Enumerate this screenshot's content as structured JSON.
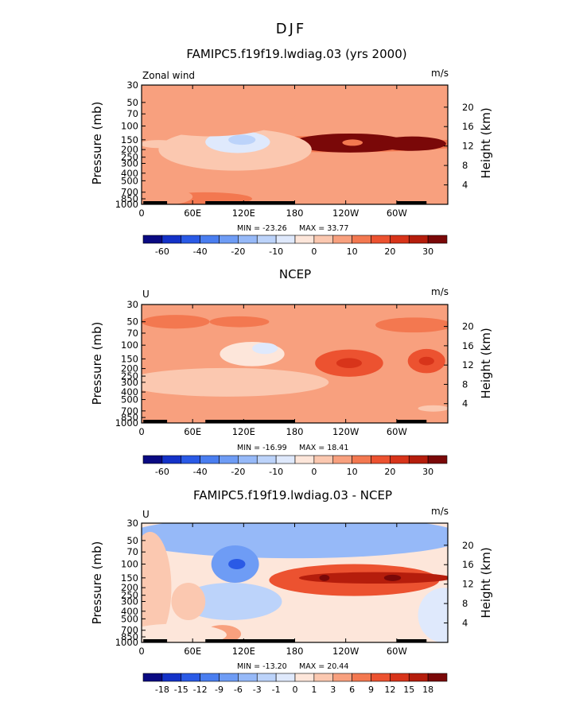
{
  "figure_title": "DJF",
  "chart_data": [
    {
      "type": "heatmap",
      "title": "FAMIPC5.f19f19.lwdiag.03 (yrs 2000)",
      "left_label": "Zonal wind",
      "units": "m/s",
      "xlabel": "",
      "ylabel": "Pressure (mb)",
      "ylabel_right": "Height (km)",
      "x_ticks": [
        "0",
        "60E",
        "120E",
        "180",
        "120W",
        "60W"
      ],
      "x_range": [
        0,
        360
      ],
      "y_ticks": [
        "30",
        "50",
        "70",
        "100",
        "150",
        "200",
        "250",
        "300",
        "400",
        "500",
        "700",
        "850",
        "1000"
      ],
      "y_ticks_right": [
        "20",
        "16",
        "12",
        "8",
        "4"
      ],
      "y_range": [
        30,
        1000
      ],
      "min_label": "MIN = -23.26",
      "max_label": "MAX = 33.77",
      "colorbar_labels": [
        "-60",
        "-40",
        "-20",
        "-10",
        "0",
        "10",
        "20",
        "30"
      ],
      "colorbar_colors": [
        "#0a0a82",
        "#1432c8",
        "#2a5ae6",
        "#4a7ef0",
        "#6e9cf5",
        "#96b9f8",
        "#bcd3fa",
        "#dfe9fc",
        "#fde6da",
        "#fbc8b0",
        "#f8a07e",
        "#f37850",
        "#ec5230",
        "#d8341a",
        "#b51d0c",
        "#7a0808"
      ],
      "features": [
        {
          "x": 200,
          "y": 230,
          "value": 2,
          "rx": 190,
          "ry": 60
        },
        {
          "x": 230,
          "y": 170,
          "value": 7,
          "rx": 150,
          "ry": 40
        },
        {
          "x": 320,
          "y": 130,
          "value": 1,
          "rx": 100,
          "ry": 20
        },
        {
          "x": 245,
          "y": 165,
          "value": 31,
          "rx": 68,
          "ry": 45
        },
        {
          "x": 318,
          "y": 168,
          "value": 28,
          "rx": 40,
          "ry": 35
        },
        {
          "x": 248,
          "y": 163,
          "value": 8,
          "rx": 12,
          "ry": 10
        },
        {
          "x": 110,
          "y": 200,
          "value": -6,
          "rx": 90,
          "ry": 110
        },
        {
          "x": 113,
          "y": 160,
          "value": -18,
          "rx": 38,
          "ry": 50
        },
        {
          "x": 118,
          "y": 150,
          "value": -23,
          "rx": 16,
          "ry": 22
        },
        {
          "x": 20,
          "y": 170,
          "value": -8,
          "rx": 22,
          "ry": 20
        },
        {
          "x": 80,
          "y": 50,
          "value": 1,
          "rx": 110,
          "ry": 60
        },
        {
          "x": 75,
          "y": 850,
          "value": 6,
          "rx": 55,
          "ry": 160
        },
        {
          "x": 20,
          "y": 800,
          "value": 2,
          "rx": 40,
          "ry": 200
        }
      ]
    },
    {
      "type": "heatmap",
      "title": "NCEP",
      "left_label": "U",
      "units": "m/s",
      "xlabel": "",
      "ylabel": "Pressure (mb)",
      "ylabel_right": "Height (km)",
      "x_ticks": [
        "0",
        "60E",
        "120E",
        "180",
        "120W",
        "60W"
      ],
      "x_range": [
        0,
        360
      ],
      "y_ticks": [
        "30",
        "50",
        "70",
        "100",
        "150",
        "200",
        "250",
        "300",
        "400",
        "500",
        "700",
        "850",
        "1000"
      ],
      "y_ticks_right": [
        "20",
        "16",
        "12",
        "8",
        "4"
      ],
      "y_range": [
        30,
        1000
      ],
      "min_label": "MIN = -16.99",
      "max_label": "MAX = 18.41",
      "colorbar_labels": [
        "-60",
        "-40",
        "-20",
        "-10",
        "0",
        "10",
        "20",
        "30"
      ],
      "colorbar_colors": [
        "#0a0a82",
        "#1432c8",
        "#2a5ae6",
        "#4a7ef0",
        "#6e9cf5",
        "#96b9f8",
        "#bcd3fa",
        "#dfe9fc",
        "#fde6da",
        "#fbc8b0",
        "#f8a07e",
        "#f37850",
        "#ec5230",
        "#d8341a",
        "#b51d0c",
        "#7a0808"
      ],
      "features": [
        {
          "x": 200,
          "y": 230,
          "value": 2,
          "rx": 200,
          "ry": 80
        },
        {
          "x": 100,
          "y": 300,
          "value": -4,
          "rx": 120,
          "ry": 120
        },
        {
          "x": 130,
          "y": 130,
          "value": -14,
          "rx": 38,
          "ry": 45
        },
        {
          "x": 145,
          "y": 110,
          "value": -17,
          "rx": 15,
          "ry": 18
        },
        {
          "x": 244,
          "y": 170,
          "value": 10,
          "rx": 40,
          "ry": 65
        },
        {
          "x": 244,
          "y": 170,
          "value": 18,
          "rx": 15,
          "ry": 25
        },
        {
          "x": 335,
          "y": 160,
          "value": 10,
          "rx": 22,
          "ry": 55
        },
        {
          "x": 335,
          "y": 160,
          "value": 17,
          "rx": 9,
          "ry": 20
        },
        {
          "x": 40,
          "y": 50,
          "value": 6,
          "rx": 40,
          "ry": 10
        },
        {
          "x": 115,
          "y": 50,
          "value": 6,
          "rx": 35,
          "ry": 8
        },
        {
          "x": 320,
          "y": 55,
          "value": 6,
          "rx": 45,
          "ry": 12
        },
        {
          "x": 343,
          "y": 650,
          "value": -5,
          "rx": 18,
          "ry": 50
        }
      ]
    },
    {
      "type": "heatmap",
      "title": "FAMIPC5.f19f19.lwdiag.03 - NCEP",
      "left_label": "U",
      "units": "m/s",
      "xlabel": "",
      "ylabel": "Pressure (mb)",
      "ylabel_right": "Height (km)",
      "x_ticks": [
        "0",
        "60E",
        "120E",
        "180",
        "120W",
        "60W"
      ],
      "x_range": [
        0,
        360
      ],
      "y_ticks": [
        "30",
        "50",
        "70",
        "100",
        "150",
        "200",
        "250",
        "300",
        "400",
        "500",
        "700",
        "850",
        "1000"
      ],
      "y_ticks_right": [
        "20",
        "16",
        "12",
        "8",
        "4"
      ],
      "y_range": [
        30,
        1000
      ],
      "min_label": "MIN = -13.20",
      "max_label": "MAX = 20.44",
      "colorbar_labels": [
        "-18",
        "-15",
        "-12",
        "-9",
        "-6",
        "-3",
        "-1",
        "0",
        "1",
        "3",
        "6",
        "9",
        "12",
        "15",
        "18"
      ],
      "colorbar_colors": [
        "#0a0a82",
        "#1432c8",
        "#2a5ae6",
        "#4a7ef0",
        "#6e9cf5",
        "#96b9f8",
        "#bcd3fa",
        "#dfe9fc",
        "#fde6da",
        "#fbc8b0",
        "#f8a07e",
        "#f37850",
        "#ec5230",
        "#d8341a",
        "#b51d0c",
        "#7a0808"
      ],
      "features": [
        {
          "x": 180,
          "y": 45,
          "value": -7,
          "rx": 200,
          "ry": 25
        },
        {
          "x": 105,
          "y": 300,
          "value": -3,
          "rx": 60,
          "ry": 150
        },
        {
          "x": 110,
          "y": 100,
          "value": -9,
          "rx": 28,
          "ry": 50
        },
        {
          "x": 112,
          "y": 100,
          "value": -13,
          "rx": 10,
          "ry": 15
        },
        {
          "x": 250,
          "y": 160,
          "value": 10,
          "rx": 100,
          "ry": 70
        },
        {
          "x": 275,
          "y": 150,
          "value": 15,
          "rx": 90,
          "ry": 25
        },
        {
          "x": 215,
          "y": 150,
          "value": 19,
          "rx": 6,
          "ry": 5
        },
        {
          "x": 295,
          "y": 150,
          "value": 20,
          "rx": 10,
          "ry": 6
        },
        {
          "x": 10,
          "y": 200,
          "value": 3,
          "rx": 25,
          "ry": 200
        },
        {
          "x": 55,
          "y": 300,
          "value": 3,
          "rx": 20,
          "ry": 150
        },
        {
          "x": 95,
          "y": 780,
          "value": 6,
          "rx": 22,
          "ry": 200
        },
        {
          "x": 40,
          "y": 800,
          "value": 1,
          "rx": 60,
          "ry": 250
        },
        {
          "x": 355,
          "y": 450,
          "value": -2,
          "rx": 30,
          "ry": 300
        }
      ]
    }
  ]
}
